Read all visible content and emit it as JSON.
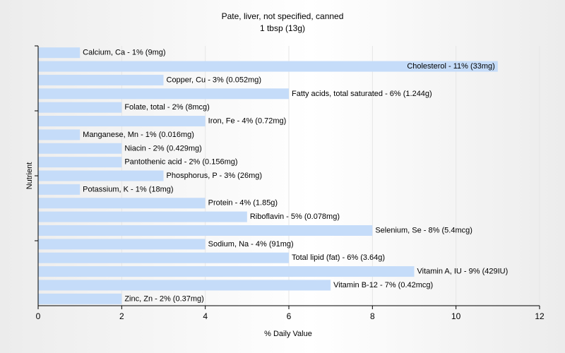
{
  "chart_data": {
    "type": "bar",
    "orientation": "horizontal",
    "title": "Pate, liver, not specified, canned",
    "subtitle": "1 tbsp (13g)",
    "xlabel": "% Daily Value",
    "ylabel": "Nutrient",
    "xlim": [
      0,
      12
    ],
    "xticks": [
      0,
      2,
      4,
      6,
      8,
      10,
      12
    ],
    "grid": true,
    "colors": {
      "bar": "#c5dcf9",
      "axis": "#000000",
      "grid": "#e6e6e6",
      "background_gradient_edge": "#ececec",
      "background_gradient_center": "#ffffff"
    },
    "categories": [
      "Calcium, Ca",
      "Cholesterol",
      "Copper, Cu",
      "Fatty acids, total saturated",
      "Folate, total",
      "Iron, Fe",
      "Manganese, Mn",
      "Niacin",
      "Pantothenic acid",
      "Phosphorus, P",
      "Potassium, K",
      "Protein",
      "Riboflavin",
      "Selenium, Se",
      "Sodium, Na",
      "Total lipid (fat)",
      "Vitamin A, IU",
      "Vitamin B-12",
      "Zinc, Zn"
    ],
    "values": [
      1,
      11,
      3,
      6,
      2,
      4,
      1,
      2,
      2,
      3,
      1,
      4,
      5,
      8,
      4,
      6,
      9,
      7,
      2
    ],
    "labels": [
      "Calcium, Ca - 1% (9mg)",
      "Cholesterol - 11% (33mg)",
      "Copper, Cu - 3% (0.052mg)",
      "Fatty acids, total saturated - 6% (1.244g)",
      "Folate, total - 2% (8mcg)",
      "Iron, Fe - 4% (0.72mg)",
      "Manganese, Mn - 1% (0.016mg)",
      "Niacin - 2% (0.429mg)",
      "Pantothenic acid - 2% (0.156mg)",
      "Phosphorus, P - 3% (26mg)",
      "Potassium, K - 1% (18mg)",
      "Protein - 4% (1.85g)",
      "Riboflavin - 5% (0.078mg)",
      "Selenium, Se - 8% (5.4mcg)",
      "Sodium, Na - 4% (91mg)",
      "Total lipid (fat) - 6% (3.64g)",
      "Vitamin A, IU - 9% (429IU)",
      "Vitamin B-12 - 7% (0.42mcg)",
      "Zinc, Zn - 2% (0.37mg)"
    ]
  }
}
